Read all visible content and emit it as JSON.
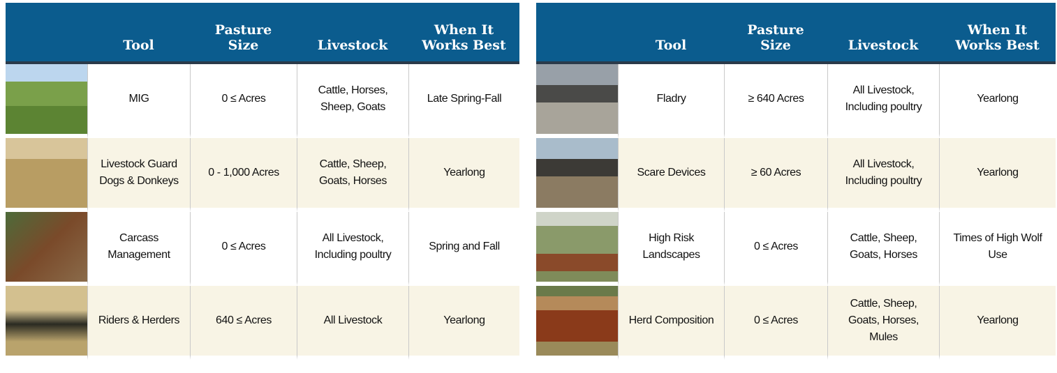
{
  "tables": [
    {
      "header": [
        "Tool",
        "Pasture Size",
        "Livestock",
        "When It Works Best"
      ],
      "rows": [
        [
          "MIG",
          "0 ≤  Acres",
          "Cattle, Horses, Sheep, Goats",
          "Late Spring-Fall"
        ],
        [
          "Livestock Guard Dogs & Donkeys",
          "0 - 1,000 Acres",
          "Cattle, Sheep, Goats, Horses",
          "Yearlong"
        ],
        [
          "Carcass Management",
          "0 ≤  Acres",
          "All Livestock, Including poultry",
          "Spring and Fall"
        ],
        [
          "Riders & Herders",
          "640 ≤ Acres",
          "All Livestock",
          "Yearlong"
        ]
      ]
    },
    {
      "header": [
        "Tool",
        "Pasture Size",
        "Livestock",
        "When It Works Best"
      ],
      "rows": [
        [
          "Fladry",
          "≥ 640 Acres",
          "All Livestock, Including poultry",
          "Yearlong"
        ],
        [
          "Scare Devices",
          "≥ 60 Acres",
          "All Livestock, Including poultry",
          "Yearlong"
        ],
        [
          "High Risk Landscapes",
          "0 ≤  Acres",
          "Cattle, Sheep, Goats, Horses",
          "Times of High Wolf Use"
        ],
        [
          "Herd Composition",
          "0 ≤  Acres",
          "Cattle, Sheep, Goats, Horses, Mules",
          "Yearlong"
        ]
      ]
    }
  ]
}
